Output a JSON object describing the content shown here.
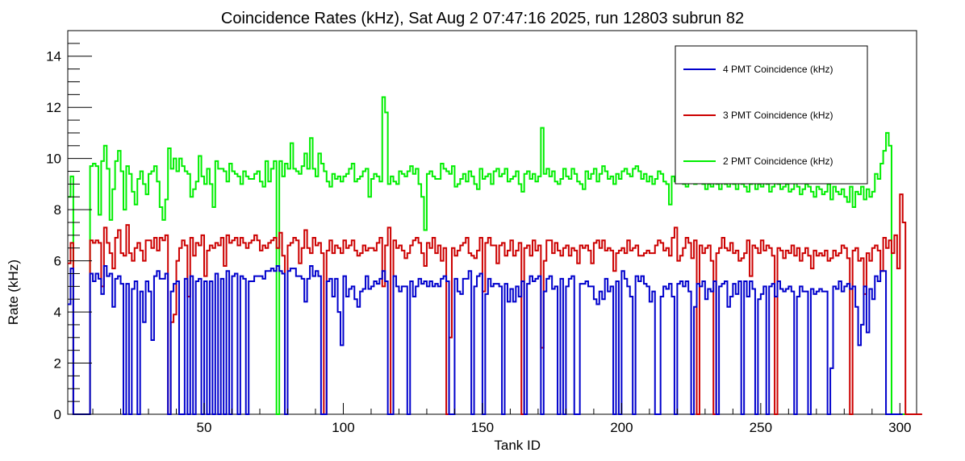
{
  "chart_data": {
    "type": "line",
    "title": "Coincidence Rates (kHz), Sat Aug  2 07:47:16 2025, run 12803 subrun 82",
    "xlabel": "Tank ID",
    "ylabel": "Rate (kHz)",
    "xlim": [
      1,
      306
    ],
    "ylim": [
      0,
      15
    ],
    "x_ticks": [
      50,
      100,
      150,
      200,
      250,
      300
    ],
    "y_ticks": [
      0,
      2,
      4,
      6,
      8,
      10,
      12,
      14
    ],
    "grid": false,
    "legend_position": "top-right",
    "step_histogram": true,
    "series": [
      {
        "name": "4 PMT Coincidence (kHz)",
        "color": "#0000cc",
        "values": [
          4.3,
          5.7,
          0,
          0,
          0,
          0,
          0,
          0,
          5.5,
          5.2,
          5.5,
          5.3,
          4.7,
          5.8,
          5.4,
          5.5,
          4.2,
          5.3,
          5.4,
          5.1,
          0,
          5.1,
          0,
          4.9,
          5.2,
          0,
          4.8,
          3.6,
          5.2,
          4.8,
          2.9,
          5.4,
          5.6,
          5.3,
          5.3,
          5.5,
          0,
          4.8,
          5.1,
          5.2,
          0,
          0,
          5.3,
          0,
          5.4,
          0,
          5.2,
          5.3,
          0,
          5.2,
          0,
          5.2,
          0,
          5.5,
          0,
          5.3,
          0,
          5.6,
          0,
          5.4,
          5.5,
          0,
          5.4,
          5.3,
          0,
          5.2,
          5.2,
          5.4,
          5.4,
          5.4,
          5.3,
          5.6,
          5.6,
          5.7,
          5.6,
          5.8,
          5.6,
          5.5,
          0,
          5.6,
          5.7,
          5.7,
          5.4,
          5.4,
          5.3,
          4.4,
          5.3,
          5.8,
          5.4,
          5.6,
          5.4,
          0,
          0,
          5.2,
          5.3,
          4.6,
          5.3,
          4.0,
          2.7,
          5.4,
          4.6,
          4.9,
          5.0,
          4.5,
          4.2,
          4.8,
          4.9,
          5.4,
          4.9,
          5.0,
          5.2,
          5.1,
          5.3,
          5.6,
          5.2,
          0,
          0,
          5.4,
          5.0,
          4.8,
          5.0,
          5.0,
          0,
          5.2,
          4.6,
          5.0,
          5.3,
          5.1,
          5.2,
          5.0,
          5.2,
          5.0,
          5.1,
          5.0,
          5.3,
          5.4,
          5.2,
          0,
          0,
          5.3,
          4.8,
          4.7,
          5.3,
          5.3,
          5.6,
          0,
          5.0,
          5.4,
          5.5,
          0,
          4.7,
          5.3,
          5.0,
          5.1,
          5.1,
          5.0,
          0,
          5.1,
          4.4,
          4.9,
          4.4,
          5.0,
          4.6,
          5.2,
          0,
          5.1,
          5.4,
          5.2,
          5.3,
          5.4,
          0,
          4.8,
          5.3,
          5.4,
          4.9,
          5.0,
          0,
          5.3,
          0,
          5.0,
          5.3,
          5.4,
          0,
          0,
          5.1,
          5.1,
          5.2,
          5.0,
          5.0,
          4.5,
          4.3,
          4.8,
          4.5,
          5.3,
          4.8,
          5.0,
          0,
          5.2,
          0,
          5.6,
          5.3,
          5.0,
          4.6,
          0,
          5.4,
          5.2,
          5.4,
          5.1,
          5.0,
          4.4,
          4.8,
          0,
          0,
          4.6,
          5.0,
          4.9,
          5.1,
          4.6,
          0,
          5.1,
          5.2,
          5.0,
          5.2,
          4.8,
          0,
          4.2,
          5.1,
          5.0,
          5.2,
          4.5,
          4.9,
          4.8,
          5.2,
          0,
          5.0,
          5.1,
          5.2,
          4.2,
          4.6,
          5.1,
          4.7,
          5.2,
          0,
          5.2,
          4.6,
          5.2,
          4.9,
          0,
          4.5,
          4.7,
          5.0,
          0,
          5.0,
          5.1,
          4.6,
          5.2,
          4.9,
          4.8,
          4.9,
          5.0,
          4.8,
          0,
          4.6,
          5.0,
          4.8,
          4.8,
          0,
          4.9,
          4.7,
          4.8,
          4.9,
          4.8,
          4.8,
          0,
          1.8,
          5.0,
          4.9,
          5.2,
          4.8,
          5.0,
          5.1,
          4.9,
          5.0,
          4.2,
          2.7,
          3.5,
          5.0,
          3.2,
          4.9,
          4.5,
          5.4,
          5.2,
          5.6,
          5.6,
          0,
          0,
          0,
          0,
          0,
          0
        ]
      },
      {
        "name": "3 PMT Coincidence (kHz)",
        "color": "#cc0000",
        "values": [
          5.9,
          6.7,
          0,
          0,
          0,
          0,
          0,
          0,
          6.8,
          6.7,
          6.8,
          6.7,
          5.0,
          7.3,
          6.7,
          6.3,
          5.7,
          6.9,
          7.2,
          6.3,
          6.2,
          7.4,
          6.3,
          6.0,
          6.5,
          6.7,
          6.4,
          6.0,
          6.8,
          6.8,
          6.5,
          6.9,
          6.4,
          6.9,
          6.8,
          7.0,
          0,
          3.6,
          3.9,
          6.0,
          6.5,
          6.8,
          6.6,
          4.6,
          6.9,
          6.2,
          6.7,
          6.6,
          7.0,
          5.4,
          6.4,
          6.6,
          6.5,
          6.7,
          6.6,
          6.9,
          5.8,
          7.0,
          6.7,
          6.8,
          6.9,
          6.6,
          6.9,
          6.7,
          6.5,
          6.7,
          6.8,
          7.0,
          6.8,
          6.4,
          6.6,
          6.5,
          6.7,
          6.8,
          6.9,
          6.5,
          7.1,
          6.2,
          0,
          6.6,
          6.7,
          6.9,
          6.8,
          5.9,
          6.5,
          7.2,
          6.5,
          6.3,
          6.9,
          6.6,
          6.7,
          6.3,
          0,
          6.4,
          6.8,
          6.3,
          6.6,
          6.5,
          6.3,
          6.8,
          6.5,
          6.6,
          6.8,
          6.4,
          6.2,
          6.3,
          6.6,
          6.4,
          6.5,
          6.5,
          6.4,
          6.7,
          6.9,
          5.0,
          6.6,
          7.3,
          0,
          6.8,
          6.5,
          6.6,
          6.4,
          6.1,
          6.3,
          6.6,
          6.8,
          6.9,
          6.7,
          6.3,
          5.8,
          6.7,
          6.5,
          6.9,
          6.3,
          6.6,
          6.0,
          6.5,
          0,
          3.0,
          6.5,
          6.2,
          6.4,
          6.6,
          6.7,
          6.9,
          6.3,
          6.2,
          6.1,
          6.4,
          6.9,
          4.8,
          6.7,
          6.9,
          6.6,
          6.6,
          5.9,
          6.6,
          6.7,
          6.2,
          6.4,
          6.8,
          6.2,
          6.4,
          6.7,
          0,
          6.5,
          6.6,
          6.2,
          6.8,
          6.4,
          6.6,
          2.6,
          6.0,
          6.8,
          6.8,
          6.3,
          6.7,
          6.4,
          6.2,
          6.5,
          6.6,
          6.2,
          6.5,
          6.4,
          5.9,
          6.6,
          6.5,
          6.6,
          6.4,
          5.9,
          6.7,
          6.8,
          6.5,
          6.8,
          6.4,
          6.5,
          6.4,
          5.6,
          6.3,
          6.4,
          6.5,
          6.3,
          6.8,
          6.4,
          6.5,
          6.6,
          6.2,
          6.2,
          6.3,
          6.4,
          6.3,
          6.3,
          6.6,
          6.8,
          6.7,
          6.4,
          6.5,
          6.2,
          6.9,
          7.3,
          6.0,
          6.2,
          6.5,
          6.9,
          6.7,
          6.1,
          6.8,
          0,
          6.6,
          6.3,
          6.5,
          6.6,
          6.0,
          0,
          6.3,
          6.5,
          6.9,
          6.5,
          6.4,
          6.7,
          6.3,
          6.4,
          6.0,
          6.1,
          6.3,
          6.8,
          5.4,
          6.6,
          6.5,
          6.3,
          6.8,
          6.4,
          6.6,
          6.5,
          6.2,
          0,
          6.5,
          6.4,
          6.1,
          6.4,
          6.3,
          6.6,
          6.2,
          6.5,
          6.0,
          6.3,
          6.5,
          6.2,
          5.7,
          6.4,
          6.2,
          6.3,
          6.2,
          6.4,
          6.0,
          6.1,
          6.4,
          6.2,
          6.3,
          6.6,
          6.5,
          6.1,
          0,
          6.4,
          6.5,
          6.0,
          6.1,
          4.7,
          6.3,
          6.0,
          6.5,
          6.6,
          6.4,
          5.6,
          6.9,
          6.5,
          6.8,
          6.3,
          7.0,
          5.7,
          8.6,
          7.5,
          0,
          0,
          0,
          0,
          0,
          0
        ]
      },
      {
        "name": "2 PMT Coincidence (kHz)",
        "color": "#00ee00",
        "values": [
          8.5,
          9.3,
          0,
          0,
          0,
          0,
          0,
          0,
          9.7,
          9.8,
          9.7,
          7.8,
          9.9,
          10.5,
          9.6,
          7.6,
          8.8,
          9.9,
          10.3,
          9.5,
          8.0,
          9.7,
          9.4,
          8.7,
          8.2,
          9.2,
          9.5,
          9.0,
          8.6,
          9.4,
          9.5,
          9.7,
          9.1,
          8.1,
          7.6,
          8.4,
          10.4,
          9.6,
          10.0,
          9.5,
          10.0,
          9.7,
          9.5,
          9.4,
          8.5,
          8.8,
          9.1,
          10.1,
          9.3,
          9.0,
          9.6,
          9.0,
          8.1,
          9.9,
          9.6,
          9.6,
          9.5,
          9.1,
          9.8,
          9.5,
          9.4,
          9.3,
          9.0,
          9.5,
          9.3,
          9.2,
          9.2,
          9.4,
          9.5,
          9.1,
          8.9,
          9.9,
          9.1,
          9.6,
          9.9,
          0,
          9.9,
          9.3,
          9.8,
          9.6,
          10.6,
          9.6,
          9.5,
          9.4,
          9.7,
          10.2,
          9.6,
          10.8,
          9.6,
          9.3,
          10.2,
          9.8,
          9.5,
          9.1,
          8.9,
          9.4,
          9.2,
          9.3,
          9.1,
          9.3,
          9.4,
          9.6,
          9.8,
          9.1,
          9.2,
          9.3,
          9.5,
          9.6,
          8.5,
          9.2,
          9.4,
          9.3,
          9.1,
          12.4,
          11.8,
          9.0,
          9.3,
          9.1,
          9.0,
          9.5,
          9.4,
          9.3,
          9.5,
          9.7,
          9.4,
          9.6,
          9.0,
          8.5,
          7.2,
          9.4,
          9.5,
          9.3,
          9.2,
          9.2,
          9.8,
          9.6,
          9.5,
          9.4,
          9.7,
          8.9,
          9.0,
          9.2,
          9.4,
          9.1,
          9.5,
          9.3,
          9.0,
          8.8,
          9.6,
          9.2,
          9.3,
          9.4,
          9.0,
          9.5,
          9.6,
          9.3,
          9.4,
          9.6,
          9.1,
          9.2,
          9.3,
          9.5,
          9.0,
          8.7,
          9.4,
          9.5,
          9.2,
          9.4,
          9.1,
          9.3,
          11.2,
          9.4,
          9.6,
          9.3,
          9.5,
          9.1,
          9.0,
          9.2,
          9.6,
          9.3,
          9.2,
          9.6,
          9.4,
          9.1,
          9.0,
          8.8,
          9.5,
          9.2,
          9.4,
          9.6,
          9.1,
          9.4,
          9.7,
          9.5,
          9.2,
          9.3,
          9.0,
          9.4,
          9.2,
          9.5,
          9.6,
          9.4,
          9.3,
          9.6,
          9.7,
          9.5,
          9.2,
          9.4,
          9.1,
          9.3,
          9.0,
          9.2,
          9.5,
          9.4,
          9.1,
          9.0,
          8.2,
          9.3,
          9.1,
          9.2,
          9.4,
          9.0,
          8.9,
          9.2,
          9.1,
          9.0,
          9.3,
          9.1,
          9.0,
          8.8,
          9.0,
          8.9,
          9.1,
          9.0,
          8.8,
          9.2,
          9.0,
          8.9,
          9.1,
          9.0,
          8.8,
          9.1,
          9.0,
          8.9,
          8.7,
          9.0,
          9.1,
          8.8,
          9.0,
          8.9,
          9.2,
          9.0,
          8.7,
          8.9,
          9.1,
          9.0,
          8.8,
          8.9,
          9.0,
          8.7,
          8.8,
          9.1,
          8.9,
          8.6,
          8.8,
          9.0,
          8.9,
          8.7,
          8.5,
          8.9,
          8.8,
          8.6,
          8.7,
          9.0,
          8.4,
          8.9,
          8.7,
          8.6,
          8.8,
          8.5,
          8.3,
          8.9,
          8.1,
          8.7,
          8.6,
          8.9,
          8.4,
          8.8,
          8.5,
          8.7,
          9.4,
          9.2,
          9.8,
          10.3,
          11.0,
          10.5,
          0,
          0,
          0,
          0,
          0,
          0
        ]
      }
    ]
  }
}
